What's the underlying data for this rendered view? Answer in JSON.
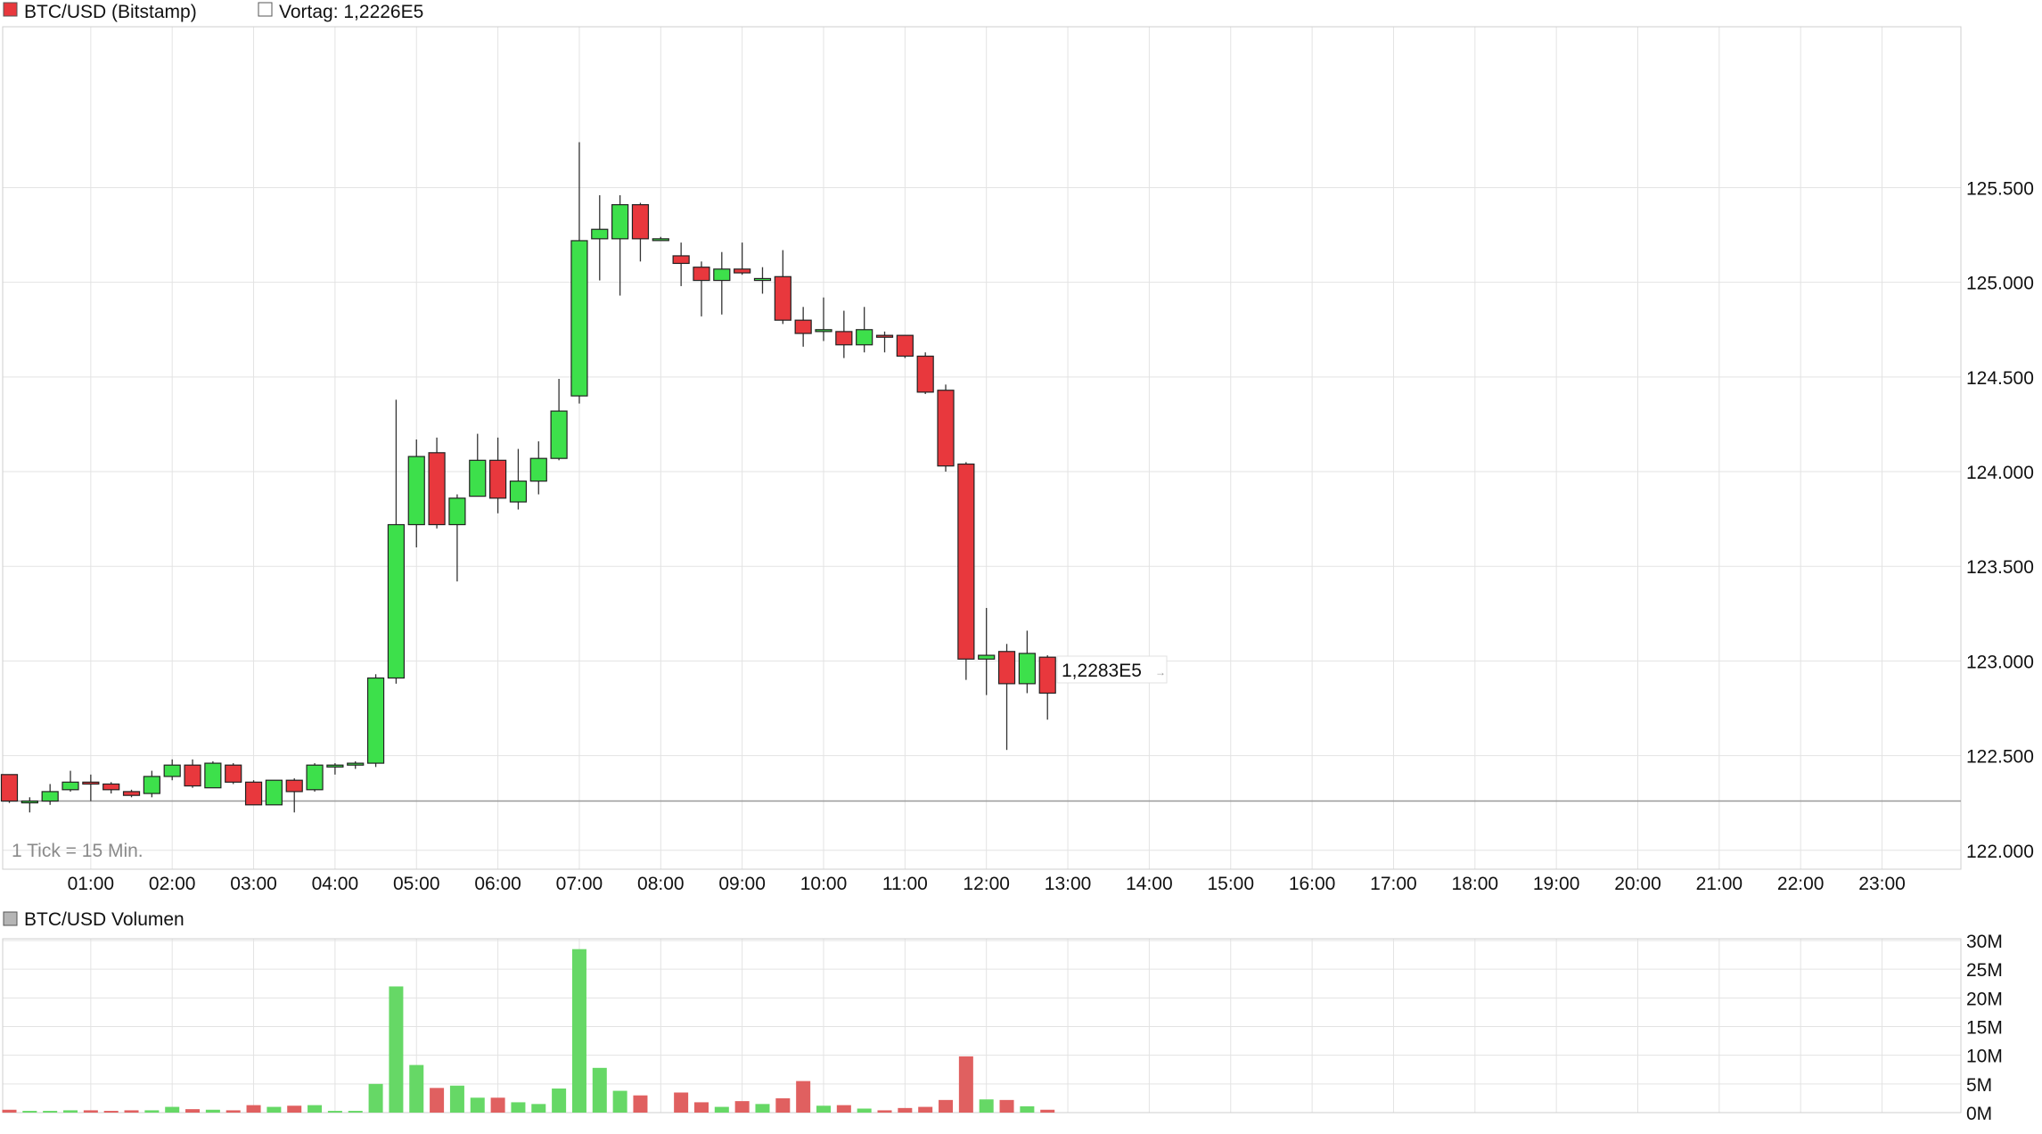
{
  "legend": {
    "series_label": "BTC/USD (Bitstamp)",
    "series_color": "#e8383d",
    "prev_label": "Vortag: 1,2226E5",
    "volume_label": "BTC/USD Volumen",
    "volume_swatch_color": "#b5b5b5"
  },
  "note": "1 Tick = 15 Min.",
  "last_price_label": "1,2283E5",
  "colors": {
    "up": "#3de04b",
    "down": "#e8383d",
    "vol_up": "#66d866",
    "vol_down": "#e06060",
    "prev_line": "#9a9a9a"
  },
  "chart_data": [
    {
      "type": "candlestick",
      "title": "BTC/USD (Bitstamp)",
      "x_tick_labels": [
        "01:00",
        "02:00",
        "03:00",
        "04:00",
        "05:00",
        "06:00",
        "07:00",
        "08:00",
        "09:00",
        "10:00",
        "11:00",
        "12:00",
        "13:00",
        "14:00",
        "15:00",
        "16:00",
        "17:00",
        "18:00",
        "19:00",
        "20:00",
        "21:00",
        "22:00",
        "23:00"
      ],
      "y_tick_labels": [
        "125.500",
        "125.000",
        "124.500",
        "124.000",
        "123.500",
        "123.000",
        "122.500",
        "122.000"
      ],
      "y_ticks": [
        125500,
        125000,
        124500,
        124000,
        123500,
        123000,
        122500,
        122000
      ],
      "ylim": [
        121900,
        126350
      ],
      "x_range_hours": [
        0,
        24
      ],
      "interval_minutes": 15,
      "previous_close": 122260,
      "last_price": 122830,
      "candles": [
        {
          "t": "00:00",
          "o": 122400,
          "h": 122400,
          "l": 122250,
          "c": 122260
        },
        {
          "t": "00:15",
          "o": 122260,
          "h": 122280,
          "l": 122200,
          "c": 122260
        },
        {
          "t": "00:30",
          "o": 122260,
          "h": 122350,
          "l": 122240,
          "c": 122310
        },
        {
          "t": "00:45",
          "o": 122320,
          "h": 122420,
          "l": 122310,
          "c": 122360
        },
        {
          "t": "01:00",
          "o": 122360,
          "h": 122400,
          "l": 122260,
          "c": 122350
        },
        {
          "t": "01:15",
          "o": 122350,
          "h": 122360,
          "l": 122300,
          "c": 122320
        },
        {
          "t": "01:30",
          "o": 122310,
          "h": 122320,
          "l": 122280,
          "c": 122290
        },
        {
          "t": "01:45",
          "o": 122300,
          "h": 122420,
          "l": 122280,
          "c": 122390
        },
        {
          "t": "02:00",
          "o": 122390,
          "h": 122480,
          "l": 122370,
          "c": 122450
        },
        {
          "t": "02:15",
          "o": 122450,
          "h": 122480,
          "l": 122330,
          "c": 122340
        },
        {
          "t": "02:30",
          "o": 122330,
          "h": 122470,
          "l": 122330,
          "c": 122460
        },
        {
          "t": "02:45",
          "o": 122450,
          "h": 122460,
          "l": 122350,
          "c": 122360
        },
        {
          "t": "03:00",
          "o": 122360,
          "h": 122370,
          "l": 122240,
          "c": 122240
        },
        {
          "t": "03:15",
          "o": 122240,
          "h": 122370,
          "l": 122240,
          "c": 122370
        },
        {
          "t": "03:30",
          "o": 122370,
          "h": 122380,
          "l": 122200,
          "c": 122310
        },
        {
          "t": "03:45",
          "o": 122320,
          "h": 122460,
          "l": 122310,
          "c": 122450
        },
        {
          "t": "04:00",
          "o": 122440,
          "h": 122460,
          "l": 122400,
          "c": 122450
        },
        {
          "t": "04:15",
          "o": 122450,
          "h": 122470,
          "l": 122430,
          "c": 122460
        },
        {
          "t": "04:30",
          "o": 122460,
          "h": 122930,
          "l": 122440,
          "c": 122910
        },
        {
          "t": "04:45",
          "o": 122910,
          "h": 124380,
          "l": 122880,
          "c": 123720
        },
        {
          "t": "05:00",
          "o": 123720,
          "h": 124170,
          "l": 123600,
          "c": 124080
        },
        {
          "t": "05:15",
          "o": 124100,
          "h": 124180,
          "l": 123700,
          "c": 123720
        },
        {
          "t": "05:30",
          "o": 123720,
          "h": 123880,
          "l": 123420,
          "c": 123860
        },
        {
          "t": "05:45",
          "o": 123870,
          "h": 124200,
          "l": 123870,
          "c": 124060
        },
        {
          "t": "06:00",
          "o": 124060,
          "h": 124180,
          "l": 123780,
          "c": 123860
        },
        {
          "t": "06:15",
          "o": 123840,
          "h": 124120,
          "l": 123800,
          "c": 123950
        },
        {
          "t": "06:30",
          "o": 123950,
          "h": 124160,
          "l": 123880,
          "c": 124070
        },
        {
          "t": "06:45",
          "o": 124070,
          "h": 124490,
          "l": 124060,
          "c": 124320
        },
        {
          "t": "07:00",
          "o": 124400,
          "h": 125740,
          "l": 124360,
          "c": 125220
        },
        {
          "t": "07:15",
          "o": 125230,
          "h": 125460,
          "l": 125010,
          "c": 125280
        },
        {
          "t": "07:30",
          "o": 125230,
          "h": 125460,
          "l": 124930,
          "c": 125410
        },
        {
          "t": "07:45",
          "o": 125410,
          "h": 125420,
          "l": 125110,
          "c": 125230
        },
        {
          "t": "08:00",
          "o": 125230,
          "h": 125240,
          "l": 125220,
          "c": 125230
        },
        {
          "t": "08:15",
          "o": 125140,
          "h": 125210,
          "l": 124980,
          "c": 125100
        },
        {
          "t": "08:30",
          "o": 125080,
          "h": 125110,
          "l": 124820,
          "c": 125010
        },
        {
          "t": "08:45",
          "o": 125010,
          "h": 125160,
          "l": 124830,
          "c": 125070
        },
        {
          "t": "09:00",
          "o": 125070,
          "h": 125210,
          "l": 125040,
          "c": 125050
        },
        {
          "t": "09:15",
          "o": 125010,
          "h": 125080,
          "l": 124940,
          "c": 125020
        },
        {
          "t": "09:30",
          "o": 125030,
          "h": 125170,
          "l": 124780,
          "c": 124800
        },
        {
          "t": "09:45",
          "o": 124800,
          "h": 124870,
          "l": 124660,
          "c": 124730
        },
        {
          "t": "10:00",
          "o": 124740,
          "h": 124920,
          "l": 124690,
          "c": 124750
        },
        {
          "t": "10:15",
          "o": 124740,
          "h": 124850,
          "l": 124600,
          "c": 124670
        },
        {
          "t": "10:30",
          "o": 124670,
          "h": 124870,
          "l": 124630,
          "c": 124750
        },
        {
          "t": "10:45",
          "o": 124720,
          "h": 124740,
          "l": 124630,
          "c": 124710
        },
        {
          "t": "11:00",
          "o": 124720,
          "h": 124720,
          "l": 124600,
          "c": 124610
        },
        {
          "t": "11:15",
          "o": 124610,
          "h": 124630,
          "l": 124410,
          "c": 124420
        },
        {
          "t": "11:30",
          "o": 124430,
          "h": 124460,
          "l": 124000,
          "c": 124030
        },
        {
          "t": "11:45",
          "o": 124040,
          "h": 124050,
          "l": 122900,
          "c": 123010
        },
        {
          "t": "12:00",
          "o": 123010,
          "h": 123280,
          "l": 122820,
          "c": 123030
        },
        {
          "t": "12:15",
          "o": 123050,
          "h": 123090,
          "l": 122530,
          "c": 122880
        },
        {
          "t": "12:30",
          "o": 122880,
          "h": 123160,
          "l": 122830,
          "c": 123040
        },
        {
          "t": "12:45",
          "o": 123020,
          "h": 123030,
          "l": 122690,
          "c": 122830
        }
      ]
    },
    {
      "type": "bar",
      "title": "BTC/USD Volumen",
      "y_tick_labels": [
        "30M",
        "25M",
        "20M",
        "15M",
        "10M",
        "5M",
        "0M"
      ],
      "y_ticks": [
        30,
        25,
        20,
        15,
        10,
        5,
        0
      ],
      "ylim": [
        0,
        30
      ],
      "unit": "M",
      "values": [
        0.5,
        0.3,
        0.3,
        0.4,
        0.4,
        0.3,
        0.4,
        0.4,
        1.0,
        0.6,
        0.5,
        0.4,
        1.3,
        1.0,
        1.2,
        1.3,
        0.3,
        0.3,
        5.0,
        22.0,
        8.3,
        4.3,
        4.7,
        2.6,
        2.6,
        1.8,
        1.5,
        4.2,
        28.5,
        7.8,
        3.8,
        3.0,
        0.0,
        3.5,
        1.8,
        1.0,
        2.0,
        1.5,
        2.5,
        5.5,
        1.2,
        1.3,
        0.7,
        0.4,
        0.8,
        1.0,
        2.2,
        9.8,
        2.3,
        2.2,
        1.1,
        0.5
      ]
    }
  ]
}
